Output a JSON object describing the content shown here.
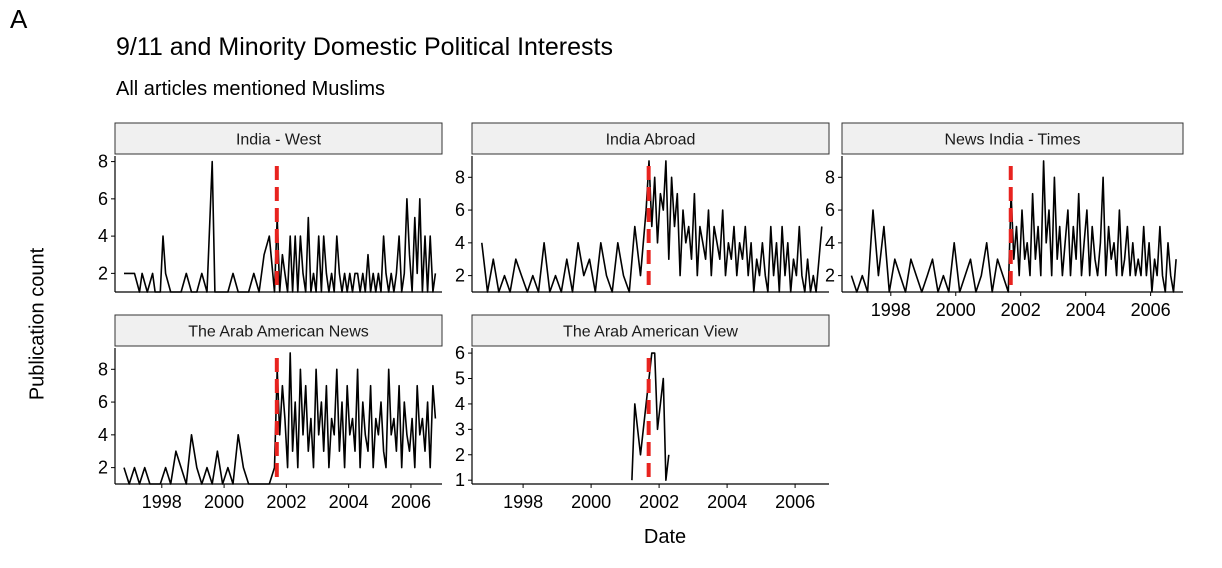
{
  "figure": {
    "panel_label": "A",
    "title": "9/11 and Minority Domestic Political Interests",
    "subtitle": "All articles mentioned Muslims",
    "xlabel": "Date",
    "ylabel": "Publication count"
  },
  "colors": {
    "line": "#000000",
    "event_line": "#e8231f",
    "strip_fill": "#f0f0f0",
    "strip_border": "#333333"
  },
  "chart_data": {
    "type": "line",
    "layout": "facet-wrap-3-columns",
    "title": "9/11 and Minority Domestic Political Interests",
    "subtitle": "All articles mentioned Muslims",
    "xlabel": "Date",
    "ylabel": "Publication count",
    "event_marker": {
      "date": "2001-09-11",
      "style": "dashed",
      "color": "#e8231f"
    },
    "x_axis": {
      "type": "date",
      "range": [
        "1996-07-01",
        "2006-12-31"
      ],
      "tick_labels": [
        "1998",
        "2000",
        "2002",
        "2004",
        "2006"
      ]
    },
    "grid": false,
    "facets": [
      {
        "name": "India - West",
        "ylim": [
          1,
          8.3
        ],
        "yticks": [
          2,
          4,
          6,
          8
        ],
        "x": [
          "1996-10",
          "1996-12",
          "1997-02",
          "1997-04",
          "1997-05",
          "1997-07",
          "1997-09",
          "1997-10",
          "1997-12",
          "1998-01",
          "1998-02",
          "1998-04",
          "1998-06",
          "1998-08",
          "1998-10",
          "1998-12",
          "1999-02",
          "1999-04",
          "1999-06",
          "1999-08",
          "1999-09",
          "1999-10",
          "1999-12",
          "2000-02",
          "2000-04",
          "2000-06",
          "2000-08",
          "2000-10",
          "2000-12",
          "2001-02",
          "2001-04",
          "2001-06",
          "2001-08",
          "2001-09",
          "2001-10",
          "2001-11",
          "2001-12",
          "2002-01",
          "2002-02",
          "2002-03",
          "2002-04",
          "2002-05",
          "2002-06",
          "2002-07",
          "2002-08",
          "2002-09",
          "2002-10",
          "2002-11",
          "2002-12",
          "2003-01",
          "2003-02",
          "2003-03",
          "2003-04",
          "2003-05",
          "2003-06",
          "2003-07",
          "2003-08",
          "2003-09",
          "2003-10",
          "2003-11",
          "2003-12",
          "2004-01",
          "2004-02",
          "2004-03",
          "2004-04",
          "2004-05",
          "2004-06",
          "2004-07",
          "2004-08",
          "2004-09",
          "2004-10",
          "2004-11",
          "2004-12",
          "2005-01",
          "2005-02",
          "2005-03",
          "2005-04",
          "2005-05",
          "2005-06",
          "2005-07",
          "2005-08",
          "2005-09",
          "2005-10",
          "2005-11",
          "2005-12",
          "2006-01",
          "2006-02",
          "2006-03",
          "2006-04",
          "2006-05",
          "2006-06",
          "2006-07",
          "2006-08",
          "2006-09",
          "2006-10"
        ],
        "values": [
          2,
          2,
          2,
          1,
          2,
          1,
          2,
          1,
          1,
          4,
          2,
          1,
          1,
          1,
          2,
          1,
          1,
          2,
          1,
          8,
          1,
          1,
          1,
          1,
          2,
          1,
          1,
          1,
          2,
          1,
          3,
          4,
          1,
          5,
          1,
          3,
          2,
          1,
          4,
          1,
          4,
          1,
          4,
          2,
          1,
          5,
          1,
          2,
          1,
          4,
          1,
          4,
          2,
          1,
          2,
          1,
          4,
          2,
          1,
          2,
          1,
          2,
          1,
          2,
          2,
          1,
          2,
          1,
          3,
          1,
          2,
          1,
          2,
          1,
          4,
          2,
          1,
          2,
          1,
          2,
          4,
          1,
          2,
          6,
          3,
          1,
          5,
          2,
          6,
          1,
          4,
          1,
          4,
          1,
          2
        ]
      },
      {
        "name": "India Abroad",
        "ylim": [
          1,
          9.3
        ],
        "yticks": [
          2,
          4,
          6,
          8
        ],
        "x": [
          "1996-10",
          "1996-12",
          "1997-02",
          "1997-04",
          "1997-06",
          "1997-08",
          "1997-10",
          "1997-12",
          "1998-02",
          "1998-04",
          "1998-06",
          "1998-08",
          "1998-10",
          "1998-12",
          "1999-02",
          "1999-04",
          "1999-06",
          "1999-08",
          "1999-10",
          "1999-12",
          "2000-02",
          "2000-04",
          "2000-06",
          "2000-08",
          "2000-10",
          "2000-12",
          "2001-02",
          "2001-04",
          "2001-06",
          "2001-08",
          "2001-09",
          "2001-10",
          "2001-11",
          "2001-12",
          "2002-01",
          "2002-02",
          "2002-03",
          "2002-04",
          "2002-05",
          "2002-06",
          "2002-07",
          "2002-08",
          "2002-09",
          "2002-10",
          "2002-11",
          "2002-12",
          "2003-01",
          "2003-02",
          "2003-03",
          "2003-04",
          "2003-05",
          "2003-06",
          "2003-07",
          "2003-08",
          "2003-09",
          "2003-10",
          "2003-11",
          "2003-12",
          "2004-01",
          "2004-02",
          "2004-03",
          "2004-04",
          "2004-05",
          "2004-06",
          "2004-07",
          "2004-08",
          "2004-09",
          "2004-10",
          "2004-11",
          "2004-12",
          "2005-01",
          "2005-02",
          "2005-03",
          "2005-04",
          "2005-05",
          "2005-06",
          "2005-07",
          "2005-08",
          "2005-09",
          "2005-10",
          "2005-11",
          "2005-12",
          "2006-01",
          "2006-02",
          "2006-03",
          "2006-04",
          "2006-05",
          "2006-06",
          "2006-07",
          "2006-08",
          "2006-09",
          "2006-10"
        ],
        "values": [
          4,
          1,
          3,
          1,
          2,
          1,
          3,
          2,
          1,
          2,
          1,
          4,
          1,
          2,
          1,
          3,
          1,
          4,
          2,
          3,
          1,
          4,
          2,
          1,
          4,
          2,
          1,
          5,
          2,
          6,
          9,
          5,
          8,
          4,
          7,
          6,
          9,
          3,
          8,
          5,
          7,
          2,
          6,
          4,
          5,
          3,
          7,
          2,
          5,
          4,
          3,
          6,
          2,
          5,
          4,
          3,
          6,
          2,
          4,
          3,
          5,
          2,
          4,
          3,
          5,
          2,
          4,
          1,
          3,
          2,
          4,
          2,
          1,
          5,
          2,
          4,
          1,
          5,
          2,
          4,
          1,
          3,
          2,
          5,
          2,
          1,
          3,
          1,
          2,
          1,
          3,
          5
        ]
      },
      {
        "name": "News India - Times",
        "ylim": [
          1,
          9.3
        ],
        "yticks": [
          2,
          4,
          6,
          8
        ],
        "x": [
          "1996-10",
          "1996-12",
          "1997-02",
          "1997-04",
          "1997-06",
          "1997-08",
          "1997-10",
          "1997-12",
          "1998-02",
          "1998-04",
          "1998-06",
          "1998-08",
          "1998-10",
          "1998-12",
          "1999-02",
          "1999-04",
          "1999-06",
          "1999-08",
          "1999-10",
          "1999-12",
          "2000-02",
          "2000-04",
          "2000-06",
          "2000-08",
          "2000-10",
          "2000-12",
          "2001-02",
          "2001-04",
          "2001-06",
          "2001-08",
          "2001-09",
          "2001-10",
          "2001-11",
          "2001-12",
          "2002-01",
          "2002-02",
          "2002-03",
          "2002-04",
          "2002-05",
          "2002-06",
          "2002-07",
          "2002-08",
          "2002-09",
          "2002-10",
          "2002-11",
          "2002-12",
          "2003-01",
          "2003-02",
          "2003-03",
          "2003-04",
          "2003-05",
          "2003-06",
          "2003-07",
          "2003-08",
          "2003-09",
          "2003-10",
          "2003-11",
          "2003-12",
          "2004-01",
          "2004-02",
          "2004-03",
          "2004-04",
          "2004-05",
          "2004-06",
          "2004-07",
          "2004-08",
          "2004-09",
          "2004-10",
          "2004-11",
          "2004-12",
          "2005-01",
          "2005-02",
          "2005-03",
          "2005-04",
          "2005-05",
          "2005-06",
          "2005-07",
          "2005-08",
          "2005-09",
          "2005-10",
          "2005-11",
          "2005-12",
          "2006-01",
          "2006-02",
          "2006-03",
          "2006-04",
          "2006-05",
          "2006-06",
          "2006-07",
          "2006-08",
          "2006-09",
          "2006-10"
        ],
        "values": [
          2,
          1,
          2,
          1,
          6,
          2,
          5,
          1,
          3,
          2,
          1,
          3,
          2,
          1,
          2,
          3,
          1,
          2,
          1,
          4,
          1,
          2,
          3,
          1,
          2,
          4,
          1,
          3,
          2,
          1,
          7,
          3,
          5,
          2,
          6,
          3,
          4,
          2,
          7,
          3,
          5,
          2,
          9,
          4,
          6,
          2,
          8,
          3,
          5,
          2,
          4,
          6,
          2,
          5,
          3,
          7,
          2,
          4,
          6,
          2,
          5,
          3,
          2,
          4,
          8,
          2,
          5,
          3,
          4,
          2,
          6,
          2,
          3,
          5,
          2,
          4,
          2,
          3,
          2,
          5,
          2,
          4,
          1,
          3,
          2,
          5,
          2,
          1,
          4,
          2,
          1,
          3
        ]
      },
      {
        "name": "The Arab American News",
        "ylim": [
          1,
          9.3
        ],
        "yticks": [
          2,
          4,
          6,
          8
        ],
        "x": [
          "1996-10",
          "1996-12",
          "1997-02",
          "1997-04",
          "1997-06",
          "1997-08",
          "1997-10",
          "1997-12",
          "1998-02",
          "1998-04",
          "1998-06",
          "1998-08",
          "1998-10",
          "1998-12",
          "1999-02",
          "1999-04",
          "1999-06",
          "1999-08",
          "1999-10",
          "1999-12",
          "2000-02",
          "2000-04",
          "2000-06",
          "2000-08",
          "2000-10",
          "2000-12",
          "2001-02",
          "2001-04",
          "2001-06",
          "2001-08",
          "2001-09",
          "2001-10",
          "2001-11",
          "2001-12",
          "2002-01",
          "2002-02",
          "2002-03",
          "2002-04",
          "2002-05",
          "2002-06",
          "2002-07",
          "2002-08",
          "2002-09",
          "2002-10",
          "2002-11",
          "2002-12",
          "2003-01",
          "2003-02",
          "2003-03",
          "2003-04",
          "2003-05",
          "2003-06",
          "2003-07",
          "2003-08",
          "2003-09",
          "2003-10",
          "2003-11",
          "2003-12",
          "2004-01",
          "2004-02",
          "2004-03",
          "2004-04",
          "2004-05",
          "2004-06",
          "2004-07",
          "2004-08",
          "2004-09",
          "2004-10",
          "2004-11",
          "2004-12",
          "2005-01",
          "2005-02",
          "2005-03",
          "2005-04",
          "2005-05",
          "2005-06",
          "2005-07",
          "2005-08",
          "2005-09",
          "2005-10",
          "2005-11",
          "2005-12",
          "2006-01",
          "2006-02",
          "2006-03",
          "2006-04",
          "2006-05",
          "2006-06",
          "2006-07",
          "2006-08",
          "2006-09",
          "2006-10"
        ],
        "values": [
          2,
          1,
          2,
          1,
          2,
          1,
          1,
          1,
          2,
          1,
          3,
          2,
          1,
          4,
          2,
          1,
          2,
          1,
          3,
          1,
          2,
          1,
          4,
          2,
          1,
          1,
          1,
          1,
          1,
          2,
          8,
          4,
          7,
          5,
          2,
          9,
          3,
          6,
          2,
          8,
          4,
          7,
          3,
          5,
          2,
          8,
          4,
          6,
          3,
          7,
          2,
          5,
          4,
          8,
          3,
          6,
          2,
          7,
          4,
          5,
          3,
          8,
          2,
          6,
          4,
          3,
          7,
          2,
          5,
          4,
          6,
          3,
          2,
          8,
          4,
          5,
          3,
          7,
          2,
          6,
          4,
          3,
          5,
          2,
          7,
          4,
          5,
          3,
          6,
          2,
          7,
          5
        ]
      },
      {
        "name": "The Arab American View",
        "ylim": [
          0.85,
          6.2
        ],
        "yticks": [
          1,
          2,
          3,
          4,
          5,
          6
        ],
        "x": [
          "2001-03",
          "2001-04",
          "2001-06",
          "2001-08",
          "2001-09",
          "2001-10",
          "2001-11",
          "2001-12",
          "2002-01",
          "2002-02",
          "2002-03",
          "2002-04"
        ],
        "values": [
          1,
          4,
          2,
          4,
          5,
          6,
          6,
          3,
          4,
          5,
          1,
          2
        ]
      }
    ]
  }
}
